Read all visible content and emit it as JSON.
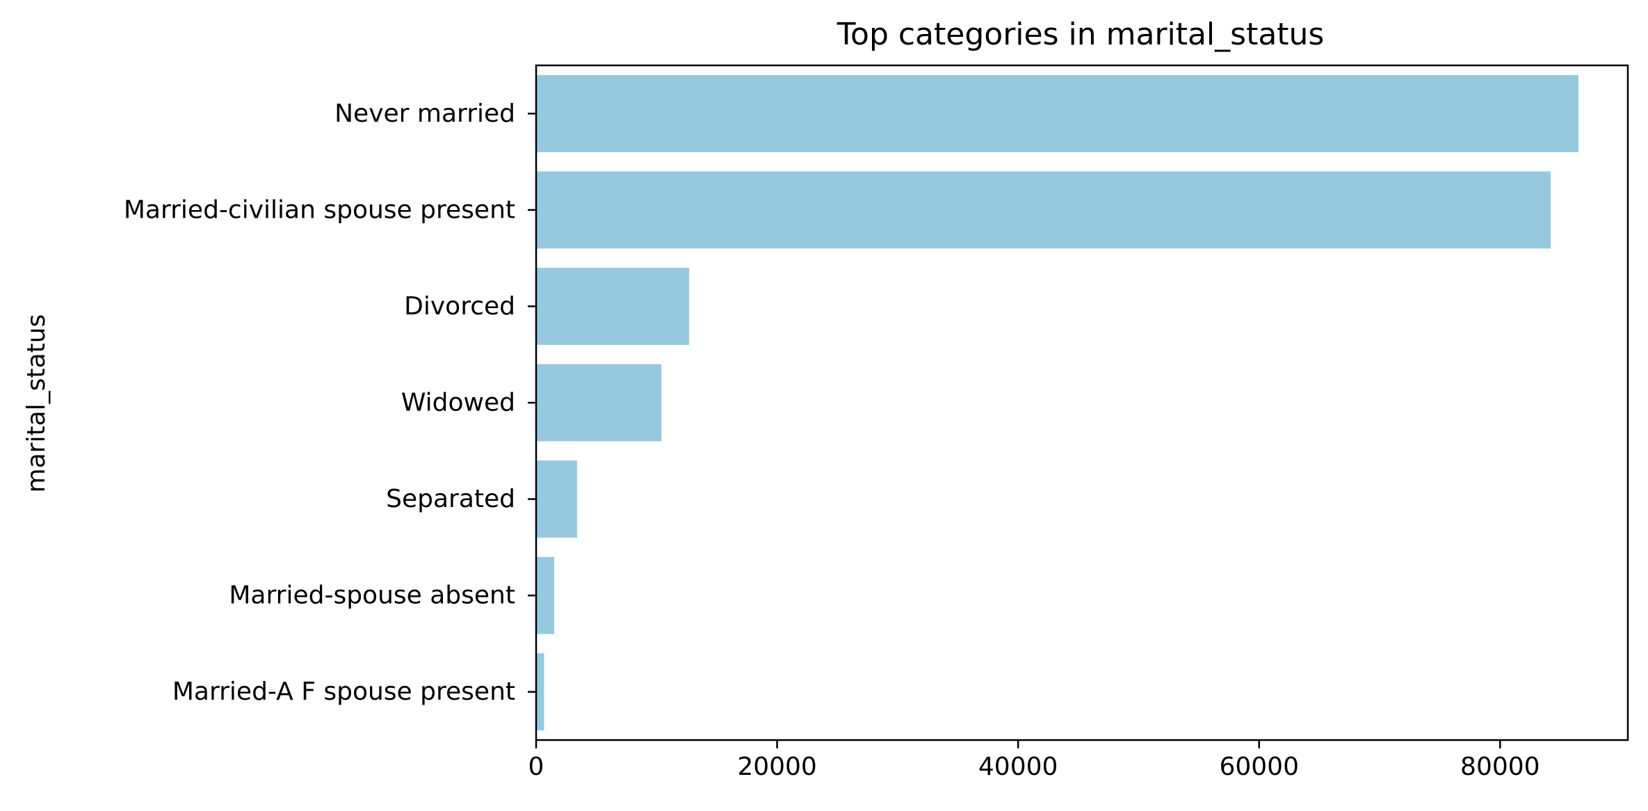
{
  "chart_data": {
    "type": "bar",
    "orientation": "horizontal",
    "title": "Top categories in marital_status",
    "xlabel": "",
    "ylabel": "marital_status",
    "categories": [
      "Never married",
      "Married-civilian spouse present",
      "Divorced",
      "Widowed",
      "Separated",
      "Married-spouse absent",
      "Married-A F spouse present"
    ],
    "values": [
      86500,
      84200,
      12700,
      10400,
      3400,
      1500,
      660
    ],
    "xlim": [
      0,
      90600
    ],
    "xticks": [
      0,
      20000,
      40000,
      60000,
      80000
    ],
    "xtick_labels": [
      "0",
      "20000",
      "40000",
      "60000",
      "80000"
    ],
    "bar_color": "#96c9df",
    "grid": false,
    "legend": "none"
  }
}
